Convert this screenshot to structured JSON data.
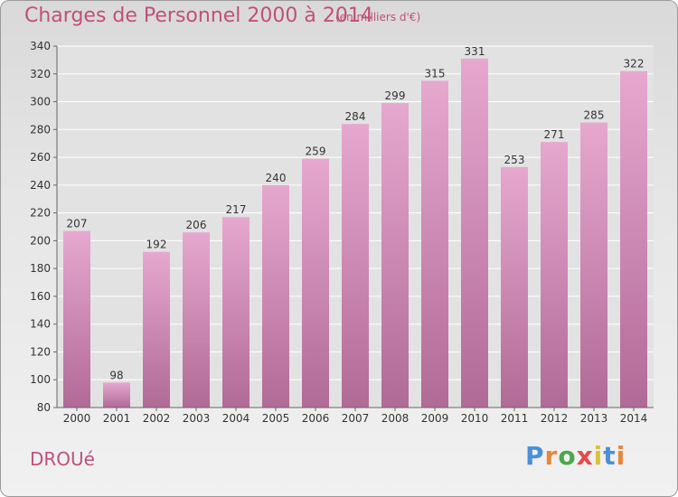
{
  "header": {
    "title": "Charges de Personnel 2000 à 2014",
    "subtitle": "(en milliers d'€)"
  },
  "footer": {
    "commune": "DROUé",
    "logo": "Proxiti"
  },
  "colors": {
    "title": "#c0507a",
    "bar_top": "#e6a8cf",
    "bar_bottom": "#b06a96",
    "grid": "#ffffff",
    "logo_letters": [
      "#4a90d9",
      "#e8863a",
      "#4aa84a",
      "#e84a4a",
      "#d9c23a",
      "#4a90d9",
      "#e8863a"
    ]
  },
  "chart_data": {
    "type": "bar",
    "title": "Charges de Personnel 2000 à 2014",
    "subtitle": "(en milliers d'€)",
    "categories": [
      "2000",
      "2001",
      "2002",
      "2003",
      "2004",
      "2005",
      "2006",
      "2007",
      "2008",
      "2009",
      "2010",
      "2011",
      "2012",
      "2013",
      "2014"
    ],
    "values": [
      207,
      98,
      192,
      206,
      217,
      240,
      259,
      284,
      299,
      315,
      331,
      253,
      271,
      285,
      322
    ],
    "ylim": [
      80,
      340
    ],
    "yticks": [
      80,
      100,
      120,
      140,
      160,
      180,
      200,
      220,
      240,
      260,
      280,
      300,
      320,
      340
    ],
    "grid": true
  }
}
